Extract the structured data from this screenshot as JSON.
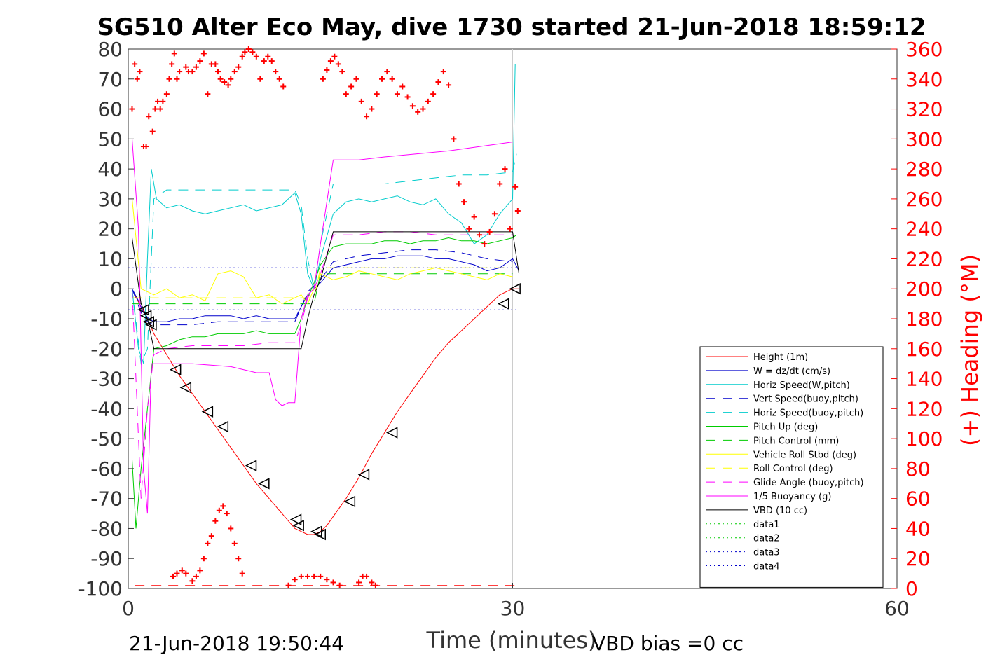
{
  "chart_data": {
    "type": "line",
    "title": "SG510 Alter Eco May, dive 1730 started 21-Jun-2018 18:59:12",
    "xlabel": "Time (minutes)",
    "ylabel": "",
    "ylabel_right": "(+) Heading (°M)",
    "xlim": [
      0,
      60
    ],
    "ylim": [
      -100,
      80
    ],
    "ylim_right": [
      0,
      360
    ],
    "x_ticks": [
      "0",
      "30",
      "60"
    ],
    "y_ticks": [
      "80",
      "70",
      "60",
      "50",
      "40",
      "30",
      "20",
      "10",
      "0",
      "-10",
      "-20",
      "-30",
      "-40",
      "-50",
      "-60",
      "-70",
      "-80",
      "-90",
      "-100"
    ],
    "y_ticks_right": [
      "360",
      "340",
      "320",
      "300",
      "280",
      "260",
      "240",
      "220",
      "200",
      "180",
      "160",
      "140",
      "120",
      "100",
      "80",
      "60",
      "40",
      "20",
      "0"
    ],
    "grid": false,
    "vertical_marker_x": 30,
    "footer_left": "21-Jun-2018 19:50:44",
    "footer_right": "VBD bias =0 cc",
    "legend_position": "bottom-right",
    "series": [
      {
        "name": "Height (1m)",
        "color": "#ff0000",
        "dash": "solid",
        "x": [
          0.5,
          1,
          1.5,
          2,
          3,
          4,
          5,
          6,
          7,
          8,
          9,
          10,
          11,
          12,
          13,
          13.5,
          14,
          14.5,
          15,
          15.5,
          16,
          17,
          18,
          19,
          20,
          21,
          22,
          23,
          24,
          25,
          26,
          27,
          28,
          29,
          30,
          30.5
        ],
        "y": [
          -2,
          -6,
          -10,
          -15,
          -22,
          -29,
          -35,
          -41,
          -47,
          -53,
          -59,
          -65,
          -70,
          -75,
          -80,
          -81,
          -82,
          -82,
          -81,
          -79,
          -76,
          -70,
          -63,
          -55,
          -48,
          -41,
          -35,
          -29,
          -23,
          -18,
          -14,
          -10,
          -6,
          -2,
          0,
          0
        ]
      },
      {
        "name": "W = dz/dt (cm/s)",
        "color": "#0000cc",
        "dash": "solid",
        "x": [
          0.3,
          0.8,
          1.2,
          1.6,
          2,
          3,
          4,
          5,
          6,
          7,
          8,
          9,
          10,
          11,
          12,
          13,
          13.5,
          14,
          14.5,
          15,
          16,
          17,
          18,
          19,
          20,
          21,
          22,
          23,
          24,
          25,
          26,
          27,
          28,
          29,
          30,
          30.5
        ],
        "y": [
          0,
          -4,
          -8,
          -10,
          -11,
          -11,
          -10,
          -10,
          -9,
          -9,
          -9,
          -10,
          -9,
          -10,
          -10,
          -10,
          -6,
          -2,
          0,
          2,
          7,
          8,
          9,
          10,
          10,
          11,
          11,
          11,
          10,
          10,
          9,
          8,
          6,
          7,
          10,
          6
        ]
      },
      {
        "name": "Horiz Speed(W,pitch)",
        "color": "#00cccc",
        "dash": "solid",
        "x": [
          0.3,
          0.8,
          1.2,
          1.5,
          1.8,
          2.2,
          3,
          4,
          5,
          6,
          7,
          8,
          9,
          10,
          11,
          12,
          13,
          13.5,
          14,
          14.5,
          15,
          16,
          17,
          18,
          19,
          20,
          21,
          22,
          23,
          24,
          25,
          26,
          27,
          28,
          29,
          30,
          30.2
        ],
        "y": [
          0,
          -20,
          -25,
          10,
          40,
          30,
          27,
          28,
          26,
          25,
          26,
          27,
          28,
          26,
          27,
          28,
          32,
          25,
          5,
          0,
          10,
          25,
          29,
          30,
          29,
          30,
          31,
          29,
          28,
          30,
          25,
          22,
          15,
          18,
          25,
          30,
          75
        ]
      },
      {
        "name": "Vert Speed(buoy,pitch)",
        "color": "#0000cc",
        "dash": "long",
        "x": [
          0.3,
          1,
          1.5,
          2,
          3,
          5,
          7,
          9,
          11,
          13,
          13.5,
          14,
          14.5,
          15,
          16,
          18,
          20,
          22,
          24,
          26,
          28,
          30
        ],
        "y": [
          0,
          -8,
          -11,
          -12,
          -12,
          -12,
          -11,
          -11,
          -11,
          -11,
          -6,
          -1,
          1,
          3,
          9,
          11,
          12,
          13,
          13,
          12,
          10,
          9
        ]
      },
      {
        "name": "Horiz Speed(buoy,pitch)",
        "color": "#00cccc",
        "dash": "long",
        "x": [
          0.3,
          1,
          1.5,
          2,
          3,
          5,
          7,
          9,
          11,
          13,
          13.5,
          14,
          14.5,
          15,
          16,
          18,
          20,
          22,
          24,
          26,
          28,
          30,
          30.3
        ],
        "y": [
          0,
          -25,
          -20,
          30,
          33,
          33,
          33,
          33,
          33,
          33,
          28,
          10,
          0,
          15,
          35,
          35,
          35,
          36,
          37,
          38,
          38,
          39,
          45
        ]
      },
      {
        "name": "Pitch Up (deg)",
        "color": "#00cc00",
        "dash": "solid",
        "x": [
          0.3,
          0.6,
          1,
          1.5,
          2,
          3,
          4,
          5,
          6,
          7,
          8,
          9,
          10,
          11,
          12,
          13,
          13.5,
          14,
          14.5,
          15,
          16,
          17,
          18,
          19,
          20,
          21,
          22,
          23,
          24,
          25,
          26,
          27,
          28,
          29,
          30,
          30.3
        ],
        "y": [
          -57,
          -80,
          -60,
          -40,
          -20,
          -19,
          -17,
          -16,
          -16,
          -15,
          -15,
          -15,
          -14,
          -15,
          -15,
          -15,
          -10,
          -3,
          2,
          8,
          14,
          15,
          15,
          15,
          16,
          16,
          15,
          16,
          16,
          17,
          16,
          16,
          15,
          16,
          17,
          18
        ]
      },
      {
        "name": "Pitch Control (mm)",
        "color": "#00cc00",
        "dash": "long",
        "x": [
          0.3,
          1,
          2,
          5,
          10,
          13,
          13.5,
          14.5,
          15,
          20,
          25,
          30
        ],
        "y": [
          -5,
          -5,
          -5,
          -5,
          -5,
          -5,
          -5,
          -5,
          5,
          5,
          5,
          5
        ]
      },
      {
        "name": "Vehicle Roll Stbd (deg)",
        "color": "#ffff00",
        "dash": "solid",
        "x": [
          0.3,
          1,
          2,
          3,
          4,
          5,
          6,
          7,
          8,
          9,
          10,
          11,
          12,
          13,
          13.5,
          14,
          14.5,
          15,
          16,
          17,
          18,
          19,
          20,
          21,
          22,
          23,
          24,
          25,
          26,
          27,
          28,
          29,
          30
        ],
        "y": [
          30,
          0,
          -2,
          0,
          -3,
          -2,
          -4,
          5,
          6,
          4,
          -3,
          -2,
          -5,
          -3,
          -2,
          -5,
          0,
          5,
          3,
          4,
          6,
          5,
          4,
          3,
          5,
          6,
          7,
          6,
          5,
          4,
          3,
          5,
          4
        ]
      },
      {
        "name": "Roll Control (deg)",
        "color": "#ffff00",
        "dash": "long",
        "x": [
          0.3,
          5,
          10,
          13,
          14.5,
          15,
          20,
          25,
          30
        ],
        "y": [
          -3,
          -3,
          -3,
          -3,
          -3,
          7,
          7,
          7,
          7
        ]
      },
      {
        "name": "Glide Angle (buoy,pitch)",
        "color": "#ff00ff",
        "dash": "long",
        "x": [
          0.3,
          1,
          1.5,
          2,
          3,
          5,
          7,
          9,
          11,
          13,
          13.5,
          14,
          14.5,
          15,
          16,
          18,
          20,
          22,
          24,
          26,
          28,
          30
        ],
        "y": [
          0,
          -70,
          -40,
          -22,
          -20,
          -19,
          -19,
          -19,
          -18,
          -18,
          -12,
          -3,
          0,
          5,
          18,
          18,
          19,
          19,
          18,
          18,
          18,
          18
        ]
      },
      {
        "name": "1/5 Buoyancy (g)",
        "color": "#ff00ff",
        "dash": "solid",
        "x": [
          0.3,
          0.8,
          1.2,
          1.5,
          1.8,
          2,
          5,
          8,
          10,
          11,
          11.5,
          12,
          12.5,
          13,
          13.5,
          14,
          14.5,
          15,
          16,
          18,
          20,
          25,
          30
        ],
        "y": [
          50,
          20,
          -60,
          -75,
          -25,
          -25,
          -25,
          -26,
          -28,
          -28,
          -37,
          -39,
          -38,
          -38,
          -10,
          -2,
          0,
          15,
          43,
          43,
          44,
          46,
          49
        ]
      },
      {
        "name": "VBD (10 cc)",
        "color": "#000000",
        "dash": "solid",
        "x": [
          0.3,
          1,
          1.5,
          2,
          13.5,
          14,
          14.5,
          15,
          16,
          30,
          30.5
        ],
        "y": [
          17,
          -5,
          -10,
          -20,
          -20,
          -10,
          -2,
          3,
          19,
          19,
          5
        ]
      },
      {
        "name": "data1",
        "color": "#00cc00",
        "dash": "dot",
        "x": [],
        "y": []
      },
      {
        "name": "data2",
        "color": "#00cc00",
        "dash": "dot",
        "x": [],
        "y": []
      },
      {
        "name": "data3",
        "color": "#0000cc",
        "dash": "dot",
        "x": [
          0,
          30.5
        ],
        "y": [
          7,
          7
        ]
      },
      {
        "name": "data4",
        "color": "#0000cc",
        "dash": "dot",
        "x": [
          0,
          30.5
        ],
        "y": [
          -7,
          -7
        ]
      }
    ],
    "heading_points": {
      "name": "Heading",
      "color": "#ff0000",
      "x": [
        0.3,
        0.5,
        0.7,
        0.9,
        1.2,
        1.4,
        1.6,
        1.9,
        2.1,
        2.3,
        2.5,
        2.7,
        3.0,
        3.2,
        3.4,
        3.6,
        3.8,
        4.0,
        4.5,
        4.7,
        5.0,
        5.3,
        5.6,
        5.9,
        6.2,
        6.5,
        6.8,
        7.0,
        7.2,
        7.5,
        7.8,
        8.0,
        8.3,
        8.6,
        8.9,
        9.1,
        9.4,
        9.7,
        10.0,
        10.3,
        10.6,
        10.9,
        11.2,
        11.5,
        11.8,
        12.1,
        15.2,
        15.5,
        15.8,
        16.1,
        16.4,
        16.7,
        17.0,
        17.4,
        17.8,
        18.2,
        18.6,
        19.0,
        19.4,
        19.8,
        20.2,
        20.6,
        21.0,
        21.4,
        21.8,
        22.2,
        22.6,
        23.0,
        23.4,
        23.8,
        24.2,
        24.6,
        25.0,
        25.4,
        25.8,
        26.2,
        26.6,
        27.0,
        27.4,
        27.8,
        28.2,
        28.6,
        29.0,
        29.4,
        29.8,
        30.2,
        30.4
      ],
      "y": [
        320,
        350,
        340,
        345,
        295,
        295,
        315,
        305,
        320,
        325,
        320,
        325,
        330,
        340,
        350,
        357,
        340,
        345,
        348,
        345,
        345,
        348,
        352,
        357,
        330,
        350,
        350,
        345,
        340,
        338,
        336,
        340,
        345,
        348,
        355,
        358,
        360,
        358,
        355,
        340,
        352,
        355,
        352,
        345,
        340,
        335,
        340,
        346,
        352,
        355,
        350,
        345,
        330,
        335,
        340,
        325,
        315,
        320,
        330,
        340,
        345,
        340,
        330,
        335,
        328,
        322,
        318,
        320,
        325,
        330,
        338,
        345,
        336,
        300,
        270,
        258,
        240,
        248,
        236,
        230,
        238,
        250,
        270,
        280,
        240,
        268,
        252
      ]
    },
    "heading_bottom_points": {
      "x": [
        3.5,
        3.8,
        4.2,
        4.5,
        5,
        5.3,
        5.6,
        5.9,
        6.2,
        6.5,
        6.8,
        7.1,
        7.4,
        7.7,
        8,
        8.3,
        8.6,
        8.9,
        12.5,
        13,
        13.5,
        14,
        14.5,
        15,
        15.5,
        16,
        16.5,
        18,
        18.3,
        18.6,
        19,
        19.3
      ],
      "y": [
        8,
        10,
        12,
        10,
        5,
        8,
        12,
        20,
        30,
        35,
        45,
        52,
        55,
        50,
        40,
        30,
        20,
        10,
        2,
        6,
        8,
        8,
        8,
        8,
        6,
        4,
        2,
        4,
        8,
        8,
        4,
        2
      ]
    },
    "triangle_markers": {
      "x": [
        1.2,
        1.4,
        1.6,
        1.8,
        3.7,
        4.5,
        6.2,
        7.4,
        9.6,
        10.6,
        13.1,
        13.3,
        14.7,
        15,
        17.3,
        18.4,
        20.6,
        29.3,
        30.2
      ],
      "y": [
        -7,
        -9,
        -11,
        -12,
        -27,
        -33,
        -41,
        -46,
        -59,
        -65,
        -77,
        -79,
        -81,
        -82,
        -71,
        -62,
        -48,
        -5,
        0
      ]
    },
    "dotted_bottom_line": {
      "color": "#ff0000",
      "y": -99
    }
  }
}
